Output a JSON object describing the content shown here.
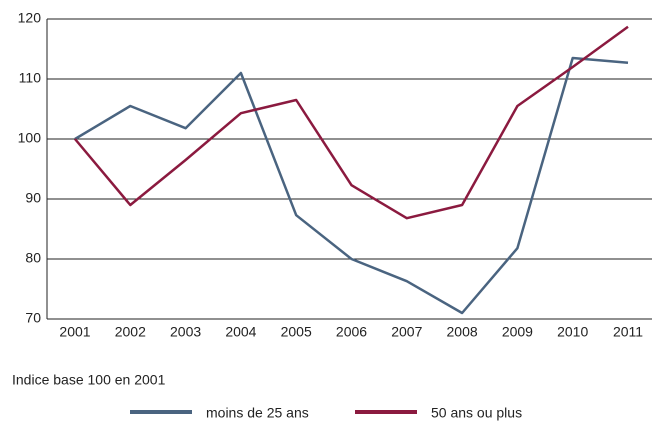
{
  "chart_data": {
    "type": "line",
    "categories": [
      "2001",
      "2002",
      "2003",
      "2004",
      "2005",
      "2006",
      "2007",
      "2008",
      "2009",
      "2010",
      "2011"
    ],
    "series": [
      {
        "name": "moins de 25 ans",
        "color": "#4a6480",
        "values": [
          100,
          105.5,
          101.8,
          111,
          87.3,
          80,
          76.3,
          71,
          81.8,
          113.5,
          112.7
        ]
      },
      {
        "name": "50 ans ou plus",
        "color": "#8b1a3f",
        "values": [
          100,
          89,
          96.5,
          104.3,
          106.5,
          92.3,
          86.8,
          89,
          105.5,
          112,
          118.7
        ]
      }
    ],
    "ylim": [
      70,
      120
    ],
    "yticks": [
      70,
      80,
      90,
      100,
      110,
      120
    ],
    "grid": true,
    "note": "Indice base 100 en 2001",
    "legend": "bottom"
  }
}
